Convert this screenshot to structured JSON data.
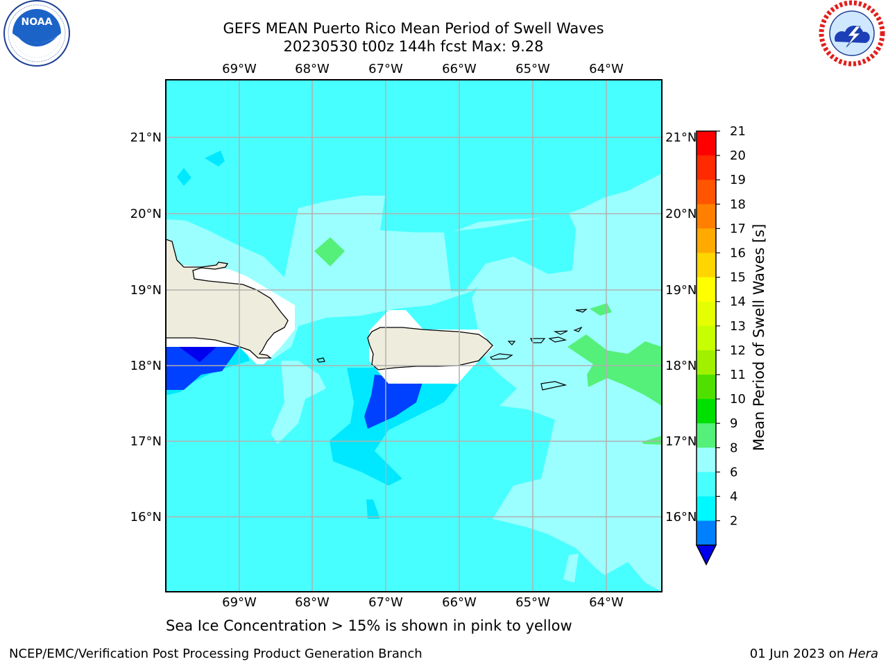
{
  "header": {
    "title_line1": "GEFS MEAN Puerto Rico Mean Period of Swell Waves",
    "title_line2": "20230530 t00z 144h fcst   Max: 9.28"
  },
  "logos": {
    "left": {
      "icon": "noaa-logo-icon",
      "text": "NOAA",
      "ring_text": "NATIONAL OCEANIC AND ATMOSPHERIC ADMINISTRATION · U.S. DEPARTMENT OF COMMERCE"
    },
    "right": {
      "icon": "nws-logo-icon",
      "ring_text": "NATIONAL WEATHER SERVICE"
    }
  },
  "map": {
    "lon_labels": [
      "69°W",
      "68°W",
      "67°W",
      "66°W",
      "65°W",
      "64°W"
    ],
    "lat_labels": [
      "21°N",
      "20°N",
      "19°N",
      "18°N",
      "17°N",
      "16°N"
    ],
    "colors": {
      "land": "#eeecdc",
      "c2_4": "#0040ff",
      "c4_6": "#00e8ff",
      "c6_8": "#48ffff",
      "c8_9": "#9cffff",
      "c9_10": "#55f07a",
      "grid": "#b0b0b0"
    }
  },
  "colorbar": {
    "title": "Mean Period of Swell Waves [s]",
    "ticks": [
      "21",
      "20",
      "19",
      "18",
      "17",
      "16",
      "15",
      "14",
      "13",
      "12",
      "11",
      "10",
      "9",
      "8",
      "6",
      "4",
      "2"
    ],
    "colors": [
      "#ff0000",
      "#ff2a00",
      "#ff5500",
      "#ff8000",
      "#ffaa00",
      "#ffd500",
      "#ffff00",
      "#e6ff00",
      "#c8ff00",
      "#a0f000",
      "#50e000",
      "#00e000",
      "#55f07a",
      "#9cffff",
      "#48ffff",
      "#00f8ff",
      "#0080ff"
    ],
    "under_color": "#0000ee"
  },
  "notes": {
    "ice": "Sea Ice Concentration > 15% is shown in pink to yellow"
  },
  "footer": {
    "left": "NCEP/EMC/Verification Post Processing Product Generation Branch",
    "right_prefix": "01 Jun 2023 on ",
    "right_host": "Hera"
  }
}
